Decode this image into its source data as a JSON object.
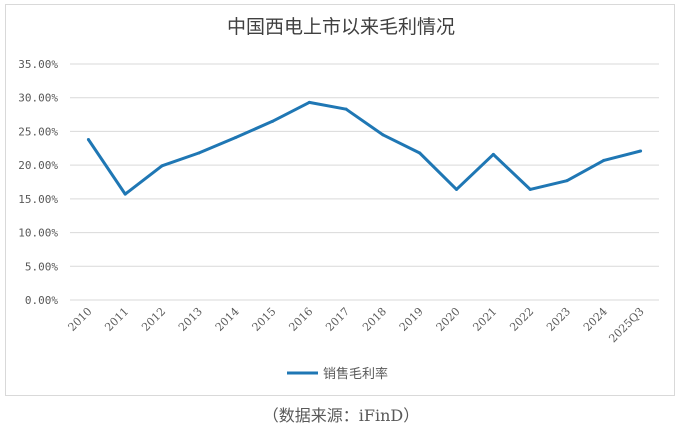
{
  "chart_data": {
    "type": "line",
    "title": "中国西电上市以来毛利情况",
    "categories": [
      "2010",
      "2011",
      "2012",
      "2013",
      "2014",
      "2015",
      "2016",
      "2017",
      "2018",
      "2019",
      "2020",
      "2021",
      "2022",
      "2023",
      "2024",
      "2025Q3"
    ],
    "series": [
      {
        "name": "销售毛利率",
        "values": [
          23.8,
          15.7,
          19.9,
          21.8,
          24.1,
          26.5,
          29.3,
          28.3,
          24.5,
          21.8,
          16.4,
          21.6,
          16.4,
          17.7,
          20.7,
          22.1
        ]
      }
    ],
    "yticks": [
      "0.00%",
      "5.00%",
      "10.00%",
      "15.00%",
      "20.00%",
      "25.00%",
      "30.00%",
      "35.00%"
    ],
    "ylim": [
      0,
      35
    ],
    "grid": true,
    "legend_position": "bottom",
    "colors": {
      "series": "#1f77b4",
      "grid": "#d9d9d9",
      "text": "#595959"
    }
  },
  "source_note": "（数据来源：iFinD）"
}
